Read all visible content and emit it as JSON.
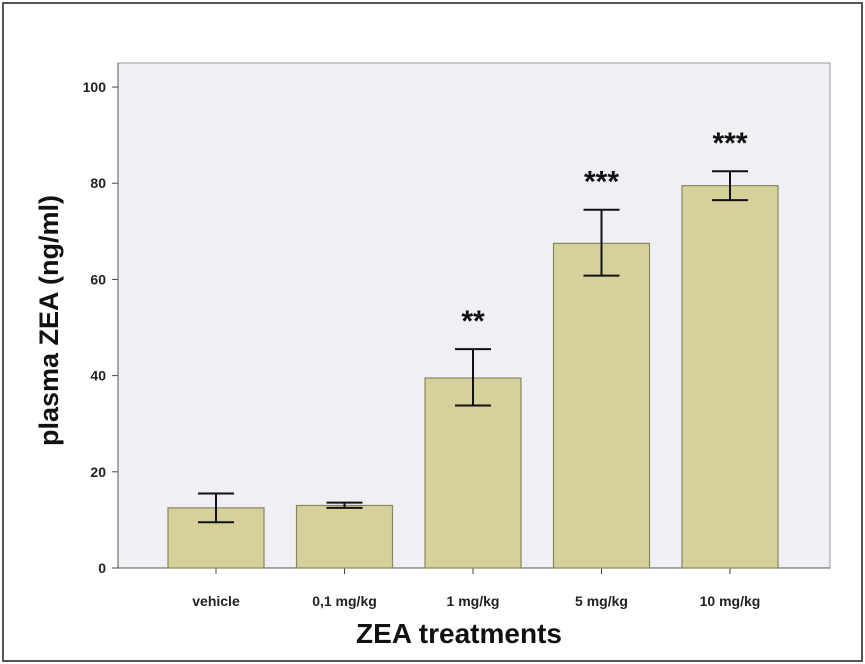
{
  "chart_data": {
    "type": "bar",
    "categories": [
      "vehicle",
      "0,1 mg/kg",
      "1 mg/kg",
      "5 mg/kg",
      "10 mg/kg"
    ],
    "series": [
      {
        "values": [
          12.5,
          13.0,
          39.5,
          67.5,
          79.5
        ],
        "error_low": [
          9.5,
          12.5,
          33.8,
          60.8,
          76.5
        ],
        "error_high": [
          15.5,
          13.6,
          45.5,
          74.5,
          82.5
        ]
      }
    ],
    "annotations": [
      "",
      "",
      "**",
      "***",
      "***"
    ],
    "xlabel": "ZEA treatments",
    "ylabel": "plasma ZEA (ng/ml)",
    "ylim": [
      0,
      105
    ],
    "yticks": [
      0,
      20,
      40,
      60,
      80,
      100
    ],
    "grid": false,
    "colors": {
      "bar": "#d6d19a",
      "bar_edge": "#8a855a",
      "plot_bg": "#eff0f5",
      "plot_border": "#9a9a9a"
    }
  }
}
